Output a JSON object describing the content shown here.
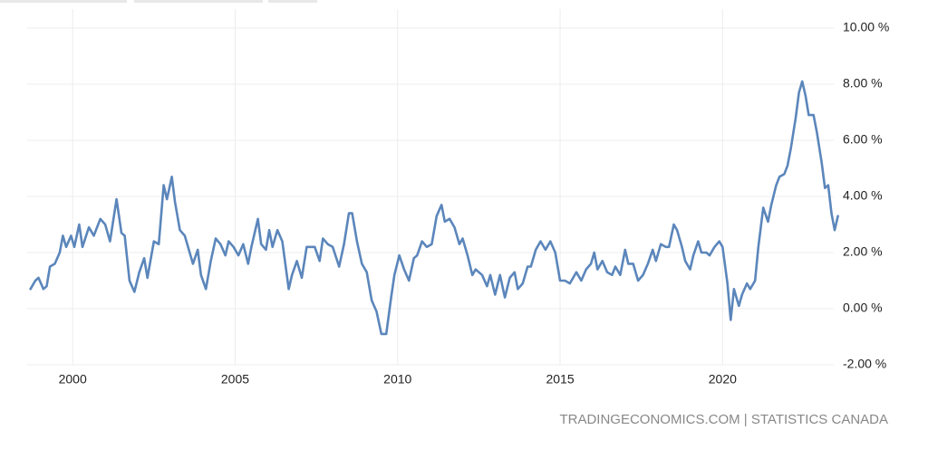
{
  "chart_data": {
    "type": "line",
    "source": "TRADINGECONOMICS.COM | STATISTICS CANADA",
    "color": "#5b86bb",
    "grid": true,
    "xlim": [
      1998.6,
      2023.7
    ],
    "xticks": [
      2000,
      2005,
      2010,
      2015,
      2020
    ],
    "ylim": [
      -2,
      10
    ],
    "yticks": [
      {
        "value": 10,
        "label": "10.00 %"
      },
      {
        "value": 8,
        "label": "8.00 %"
      },
      {
        "value": 6,
        "label": "6.00 %"
      },
      {
        "value": 4,
        "label": "4.00 %"
      },
      {
        "value": 2,
        "label": "2.00 %"
      },
      {
        "value": 0,
        "label": "0.00 %"
      },
      {
        "value": -2,
        "label": "-2.00 %"
      }
    ],
    "x": [
      1998.7,
      1998.85,
      1998.95,
      1999.1,
      1999.2,
      1999.3,
      1999.45,
      1999.6,
      1999.7,
      1999.8,
      1999.95,
      2000.05,
      2000.2,
      2000.3,
      2000.5,
      2000.65,
      2000.85,
      2001.0,
      2001.15,
      2001.35,
      2001.5,
      2001.6,
      2001.75,
      2001.9,
      2002.05,
      2002.2,
      2002.3,
      2002.5,
      2002.65,
      2002.8,
      2002.9,
      2003.05,
      2003.15,
      2003.3,
      2003.45,
      2003.6,
      2003.7,
      2003.85,
      2003.95,
      2004.1,
      2004.25,
      2004.4,
      2004.55,
      2004.7,
      2004.8,
      2004.95,
      2005.1,
      2005.25,
      2005.4,
      2005.5,
      2005.7,
      2005.8,
      2005.95,
      2006.05,
      2006.15,
      2006.3,
      2006.45,
      2006.65,
      2006.75,
      2006.9,
      2007.05,
      2007.2,
      2007.35,
      2007.45,
      2007.6,
      2007.7,
      2007.85,
      2008.0,
      2008.2,
      2008.35,
      2008.5,
      2008.6,
      2008.75,
      2008.9,
      2009.05,
      2009.2,
      2009.35,
      2009.5,
      2009.65,
      2009.8,
      2009.9,
      2010.05,
      2010.2,
      2010.35,
      2010.5,
      2010.6,
      2010.75,
      2010.9,
      2011.05,
      2011.2,
      2011.35,
      2011.45,
      2011.6,
      2011.75,
      2011.9,
      2012.0,
      2012.15,
      2012.3,
      2012.4,
      2012.6,
      2012.75,
      2012.85,
      2013.0,
      2013.15,
      2013.3,
      2013.45,
      2013.6,
      2013.7,
      2013.85,
      2014.0,
      2014.1,
      2014.25,
      2014.4,
      2014.55,
      2014.7,
      2014.85,
      2015.0,
      2015.15,
      2015.3,
      2015.5,
      2015.65,
      2015.8,
      2015.95,
      2016.05,
      2016.15,
      2016.3,
      2016.45,
      2016.6,
      2016.7,
      2016.85,
      2017.0,
      2017.1,
      2017.25,
      2017.4,
      2017.55,
      2017.7,
      2017.85,
      2017.95,
      2018.1,
      2018.25,
      2018.35,
      2018.5,
      2018.6,
      2018.75,
      2018.85,
      2019.0,
      2019.1,
      2019.25,
      2019.35,
      2019.5,
      2019.6,
      2019.75,
      2019.9,
      2020.0,
      2020.15,
      2020.25,
      2020.35,
      2020.5,
      2020.6,
      2020.75,
      2020.85,
      2021.0,
      2021.1,
      2021.25,
      2021.4,
      2021.5,
      2021.65,
      2021.75,
      2021.9,
      2022.0,
      2022.1,
      2022.25,
      2022.35,
      2022.45,
      2022.55,
      2022.65,
      2022.8,
      2022.9,
      2023.05,
      2023.15,
      2023.25,
      2023.35,
      2023.45,
      2023.55
    ],
    "values": [
      0.7,
      1.0,
      1.1,
      0.7,
      0.8,
      1.5,
      1.6,
      2.0,
      2.6,
      2.2,
      2.6,
      2.2,
      3.0,
      2.2,
      2.9,
      2.6,
      3.2,
      3.0,
      2.4,
      3.9,
      2.7,
      2.6,
      1.0,
      0.6,
      1.3,
      1.8,
      1.1,
      2.4,
      2.3,
      4.4,
      3.9,
      4.7,
      3.8,
      2.8,
      2.6,
      2.0,
      1.6,
      2.1,
      1.2,
      0.7,
      1.7,
      2.5,
      2.3,
      1.9,
      2.4,
      2.2,
      1.9,
      2.3,
      1.6,
      2.2,
      3.2,
      2.3,
      2.1,
      2.8,
      2.2,
      2.8,
      2.4,
      0.7,
      1.2,
      1.7,
      1.1,
      2.2,
      2.2,
      2.2,
      1.7,
      2.5,
      2.3,
      2.2,
      1.5,
      2.3,
      3.4,
      3.4,
      2.4,
      1.6,
      1.3,
      0.3,
      -0.1,
      -0.9,
      -0.9,
      0.4,
      1.2,
      1.9,
      1.4,
      1.0,
      1.8,
      1.9,
      2.4,
      2.2,
      2.3,
      3.3,
      3.7,
      3.1,
      3.2,
      2.9,
      2.3,
      2.5,
      1.9,
      1.2,
      1.4,
      1.2,
      0.8,
      1.2,
      0.5,
      1.2,
      0.4,
      1.1,
      1.3,
      0.7,
      0.9,
      1.5,
      1.5,
      2.1,
      2.4,
      2.1,
      2.4,
      2.0,
      1.0,
      1.0,
      0.9,
      1.3,
      1.0,
      1.4,
      1.6,
      2.0,
      1.4,
      1.7,
      1.3,
      1.2,
      1.5,
      1.2,
      2.1,
      1.6,
      1.6,
      1.0,
      1.2,
      1.6,
      2.1,
      1.7,
      2.3,
      2.2,
      2.2,
      3.0,
      2.8,
      2.2,
      1.7,
      1.4,
      1.9,
      2.4,
      2.0,
      2.0,
      1.9,
      2.2,
      2.4,
      2.2,
      0.9,
      -0.4,
      0.7,
      0.1,
      0.5,
      0.9,
      0.7,
      1.0,
      2.2,
      3.6,
      3.1,
      3.7,
      4.4,
      4.7,
      4.8,
      5.1,
      5.7,
      6.8,
      7.7,
      8.1,
      7.6,
      6.9,
      6.9,
      6.3,
      5.2,
      4.3,
      4.4,
      3.4,
      2.8,
      3.3
    ]
  }
}
